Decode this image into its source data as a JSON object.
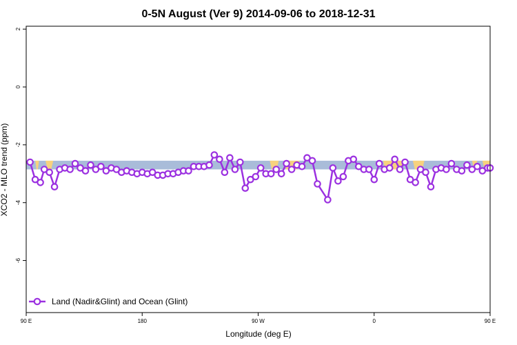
{
  "chart_data": {
    "type": "line",
    "title": "0-5N August (Ver 9)   2014-09-06 to 2018-12-31",
    "xlabel": "Longitude (deg E)",
    "ylabel": "XCO2 - MLO trend (ppm)",
    "xlim": [
      90,
      450
    ],
    "ylim": [
      -7.8,
      2.1
    ],
    "x_ticks": [
      {
        "value": 90,
        "label": "90 E"
      },
      {
        "value": 180,
        "label": "180"
      },
      {
        "value": 270,
        "label": "90 W"
      },
      {
        "value": 360,
        "label": "0"
      },
      {
        "value": 450,
        "label": "90 E"
      },
      {
        "value": 540,
        "label": "180"
      }
    ],
    "y_ticks": [
      {
        "value": 2,
        "label": "2"
      },
      {
        "value": 0,
        "label": "0"
      },
      {
        "value": -2,
        "label": "-2"
      },
      {
        "value": -4,
        "label": "-4"
      },
      {
        "value": -6,
        "label": "-6"
      }
    ],
    "band": {
      "lower": -2.85,
      "upper": -2.55,
      "color": "#a9bcd9"
    },
    "land_patches": [
      {
        "x0": 97,
        "x1": 100,
        "color": "#f7d27e"
      },
      {
        "x0": 105,
        "x1": 111,
        "color": "#f7d27e"
      },
      {
        "x0": 279,
        "x1": 286,
        "color": "#f7d27e"
      },
      {
        "x0": 290,
        "x1": 302,
        "color": "#f7d27e"
      },
      {
        "x0": 367,
        "x1": 383,
        "color": "#f7d27e"
      },
      {
        "x0": 390,
        "x1": 399,
        "color": "#f7d27e"
      },
      {
        "x0": 436,
        "x1": 440,
        "color": "#f7d27e"
      },
      {
        "x0": 444,
        "x1": 450,
        "color": "#f7d27e"
      }
    ],
    "series": [
      {
        "name": "Land (Nadir&Glint) and Ocean (Glint)",
        "color": "#9b30e0",
        "points": [
          [
            93,
            -2.6
          ],
          [
            97,
            -3.2
          ],
          [
            101,
            -3.3
          ],
          [
            104,
            -2.85
          ],
          [
            108,
            -2.95
          ],
          [
            112,
            -3.45
          ],
          [
            116,
            -2.85
          ],
          [
            120,
            -2.8
          ],
          [
            124,
            -2.85
          ],
          [
            128,
            -2.65
          ],
          [
            132,
            -2.8
          ],
          [
            136,
            -2.9
          ],
          [
            140,
            -2.7
          ],
          [
            144,
            -2.85
          ],
          [
            148,
            -2.75
          ],
          [
            152,
            -2.9
          ],
          [
            156,
            -2.8
          ],
          [
            160,
            -2.85
          ],
          [
            164,
            -2.95
          ],
          [
            168,
            -2.9
          ],
          [
            172,
            -2.95
          ],
          [
            176,
            -3.0
          ],
          [
            180,
            -2.95
          ],
          [
            184,
            -3.0
          ],
          [
            188,
            -2.95
          ],
          [
            192,
            -3.05
          ],
          [
            196,
            -3.05
          ],
          [
            200,
            -3.0
          ],
          [
            204,
            -3.0
          ],
          [
            208,
            -2.95
          ],
          [
            212,
            -2.9
          ],
          [
            216,
            -2.9
          ],
          [
            220,
            -2.75
          ],
          [
            224,
            -2.75
          ],
          [
            228,
            -2.75
          ],
          [
            232,
            -2.7
          ],
          [
            236,
            -2.35
          ],
          [
            240,
            -2.5
          ],
          [
            244,
            -2.95
          ],
          [
            248,
            -2.45
          ],
          [
            252,
            -2.85
          ],
          [
            256,
            -2.6
          ],
          [
            260,
            -3.5
          ],
          [
            264,
            -3.2
          ],
          [
            268,
            -3.1
          ],
          [
            272,
            -2.8
          ],
          [
            276,
            -3.0
          ],
          [
            280,
            -3.0
          ],
          [
            284,
            -2.85
          ],
          [
            288,
            -3.0
          ],
          [
            292,
            -2.65
          ],
          [
            296,
            -2.85
          ],
          [
            300,
            -2.7
          ],
          [
            304,
            -2.75
          ],
          [
            308,
            -2.45
          ],
          [
            312,
            -2.55
          ],
          [
            316,
            -3.35
          ],
          [
            324,
            -3.9
          ],
          [
            328,
            -2.8
          ],
          [
            332,
            -3.25
          ],
          [
            336,
            -3.1
          ],
          [
            340,
            -2.55
          ],
          [
            344,
            -2.5
          ],
          [
            348,
            -2.75
          ],
          [
            352,
            -2.85
          ],
          [
            356,
            -2.85
          ],
          [
            360,
            -3.2
          ],
          [
            364,
            -2.65
          ],
          [
            368,
            -2.85
          ],
          [
            372,
            -2.8
          ],
          [
            376,
            -2.5
          ],
          [
            380,
            -2.85
          ],
          [
            384,
            -2.6
          ],
          [
            388,
            -3.2
          ],
          [
            392,
            -3.3
          ],
          [
            396,
            -2.85
          ],
          [
            400,
            -2.95
          ],
          [
            404,
            -3.45
          ],
          [
            408,
            -2.85
          ],
          [
            412,
            -2.8
          ],
          [
            416,
            -2.85
          ],
          [
            420,
            -2.65
          ],
          [
            424,
            -2.85
          ],
          [
            428,
            -2.9
          ],
          [
            432,
            -2.7
          ],
          [
            436,
            -2.85
          ],
          [
            440,
            -2.75
          ],
          [
            444,
            -2.9
          ],
          [
            448,
            -2.8
          ],
          [
            452,
            -2.8
          ]
        ]
      }
    ],
    "legend": {
      "position": "bottom-left"
    }
  }
}
